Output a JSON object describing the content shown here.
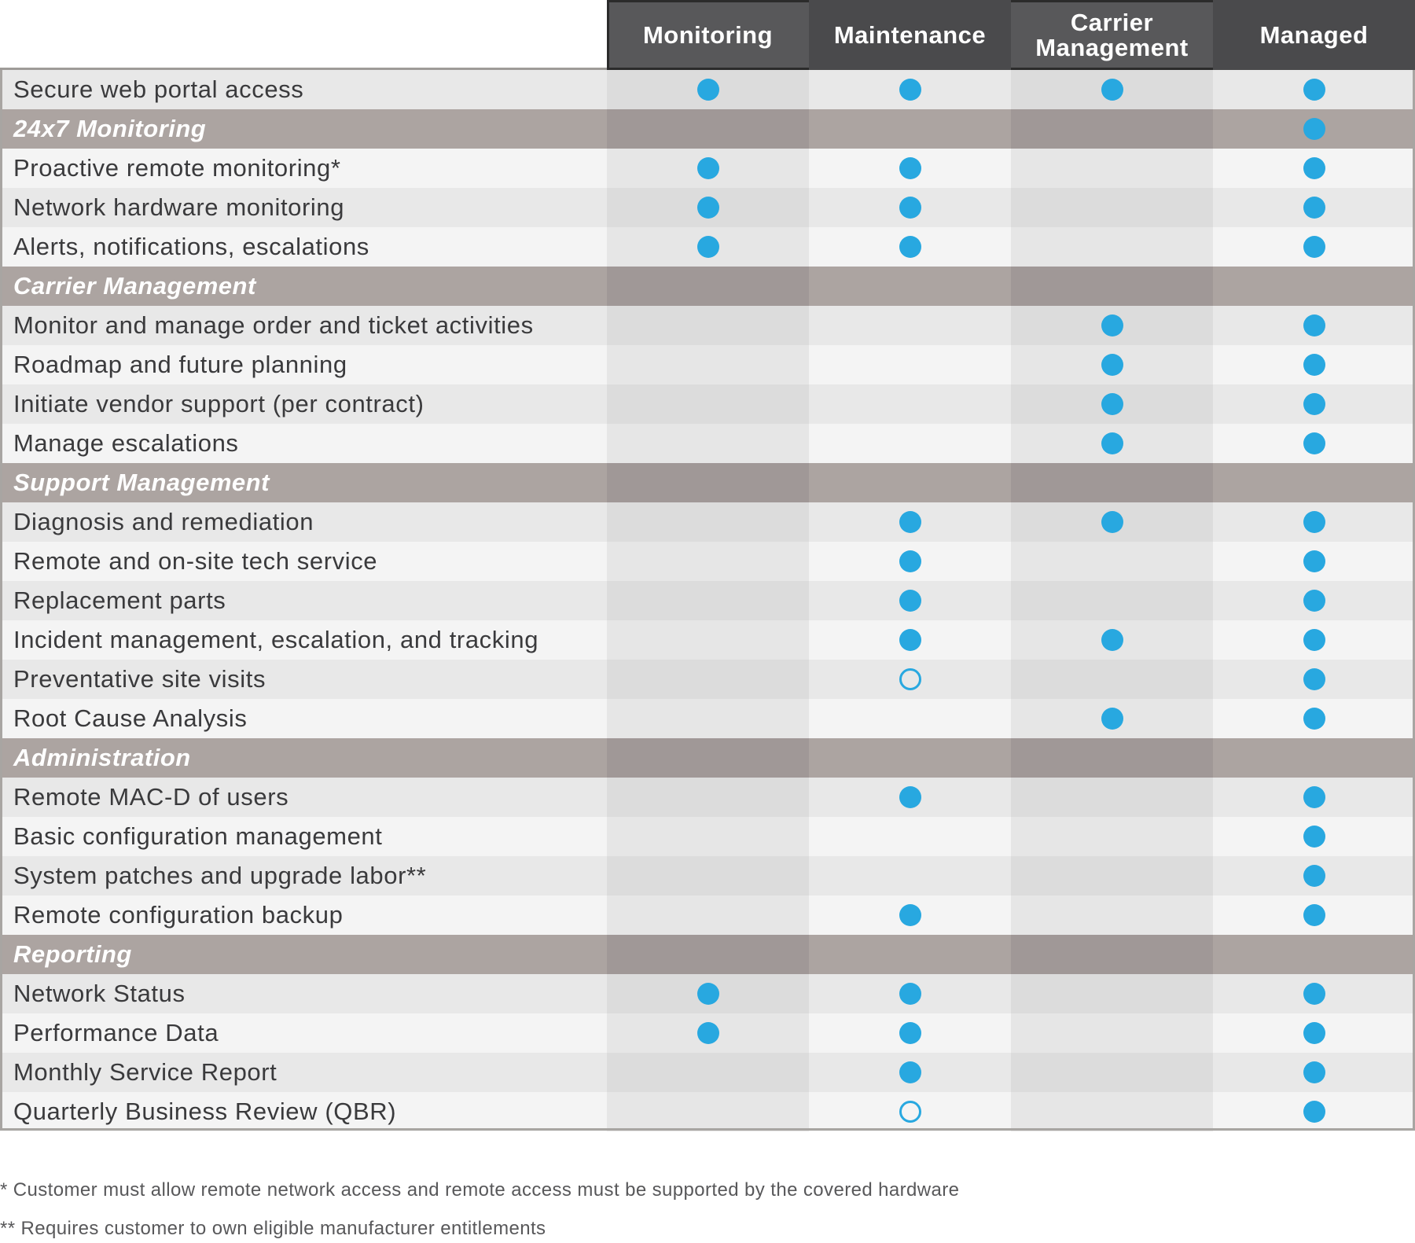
{
  "columns": [
    "Monitoring",
    "Maintenance",
    "Carrier Management",
    "Managed"
  ],
  "legend_colors": {
    "dot": "#28a8e0",
    "section_band": "#aca4a1",
    "header_band": "#58585a"
  },
  "rows": [
    {
      "type": "item",
      "label": "Secure web portal access",
      "marks": [
        "full",
        "full",
        "full",
        "full"
      ]
    },
    {
      "type": "section",
      "label": "24x7 Monitoring",
      "marks": [
        "",
        "",
        "",
        "full"
      ]
    },
    {
      "type": "item",
      "label": "Proactive remote monitoring*",
      "marks": [
        "full",
        "full",
        "",
        "full"
      ]
    },
    {
      "type": "item",
      "label": "Network hardware monitoring",
      "marks": [
        "full",
        "full",
        "",
        "full"
      ]
    },
    {
      "type": "item",
      "label": "Alerts, notifications, escalations",
      "marks": [
        "full",
        "full",
        "",
        "full"
      ]
    },
    {
      "type": "section",
      "label": "Carrier Management",
      "marks": [
        "",
        "",
        "",
        ""
      ]
    },
    {
      "type": "item",
      "label": "Monitor and manage order and ticket activities",
      "marks": [
        "",
        "",
        "full",
        "full"
      ]
    },
    {
      "type": "item",
      "label": "Roadmap and future planning",
      "marks": [
        "",
        "",
        "full",
        "full"
      ]
    },
    {
      "type": "item",
      "label": "Initiate vendor support (per contract)",
      "marks": [
        "",
        "",
        "full",
        "full"
      ]
    },
    {
      "type": "item",
      "label": "Manage escalations",
      "marks": [
        "",
        "",
        "full",
        "full"
      ]
    },
    {
      "type": "section",
      "label": "Support Management",
      "marks": [
        "",
        "",
        "",
        ""
      ]
    },
    {
      "type": "item",
      "label": "Diagnosis and remediation",
      "marks": [
        "",
        "full",
        "full",
        "full"
      ]
    },
    {
      "type": "item",
      "label": "Remote and on-site tech service",
      "marks": [
        "",
        "full",
        "",
        "full"
      ]
    },
    {
      "type": "item",
      "label": "Replacement parts",
      "marks": [
        "",
        "full",
        "",
        "full"
      ]
    },
    {
      "type": "item",
      "label": "Incident management, escalation, and tracking",
      "marks": [
        "",
        "full",
        "full",
        "full"
      ]
    },
    {
      "type": "item",
      "label": "Preventative site visits",
      "marks": [
        "",
        "open",
        "",
        "full"
      ]
    },
    {
      "type": "item",
      "label": "Root Cause Analysis",
      "marks": [
        "",
        "",
        "full",
        "full"
      ]
    },
    {
      "type": "section",
      "label": "Administration",
      "marks": [
        "",
        "",
        "",
        ""
      ]
    },
    {
      "type": "item",
      "label": "Remote MAC-D of users",
      "marks": [
        "",
        "full",
        "",
        "full"
      ]
    },
    {
      "type": "item",
      "label": "Basic configuration management",
      "marks": [
        "",
        "",
        "",
        "full"
      ]
    },
    {
      "type": "item",
      "label": "System patches and upgrade labor**",
      "marks": [
        "",
        "",
        "",
        "full"
      ]
    },
    {
      "type": "item",
      "label": "Remote configuration backup",
      "marks": [
        "",
        "full",
        "",
        "full"
      ]
    },
    {
      "type": "section",
      "label": "Reporting",
      "marks": [
        "",
        "",
        "",
        ""
      ]
    },
    {
      "type": "item",
      "label": "Network Status",
      "marks": [
        "full",
        "full",
        "",
        "full"
      ]
    },
    {
      "type": "item",
      "label": "Performance Data",
      "marks": [
        "full",
        "full",
        "",
        "full"
      ]
    },
    {
      "type": "item",
      "label": "Monthly Service Report",
      "marks": [
        "",
        "full",
        "",
        "full"
      ]
    },
    {
      "type": "item",
      "label": "Quarterly Business Review (QBR)",
      "marks": [
        "",
        "open",
        "",
        "full"
      ]
    }
  ],
  "footnotes": [
    "* Customer must allow remote network access and remote access must be supported by the covered hardware",
    "** Requires customer to own eligible manufacturer entitlements"
  ]
}
